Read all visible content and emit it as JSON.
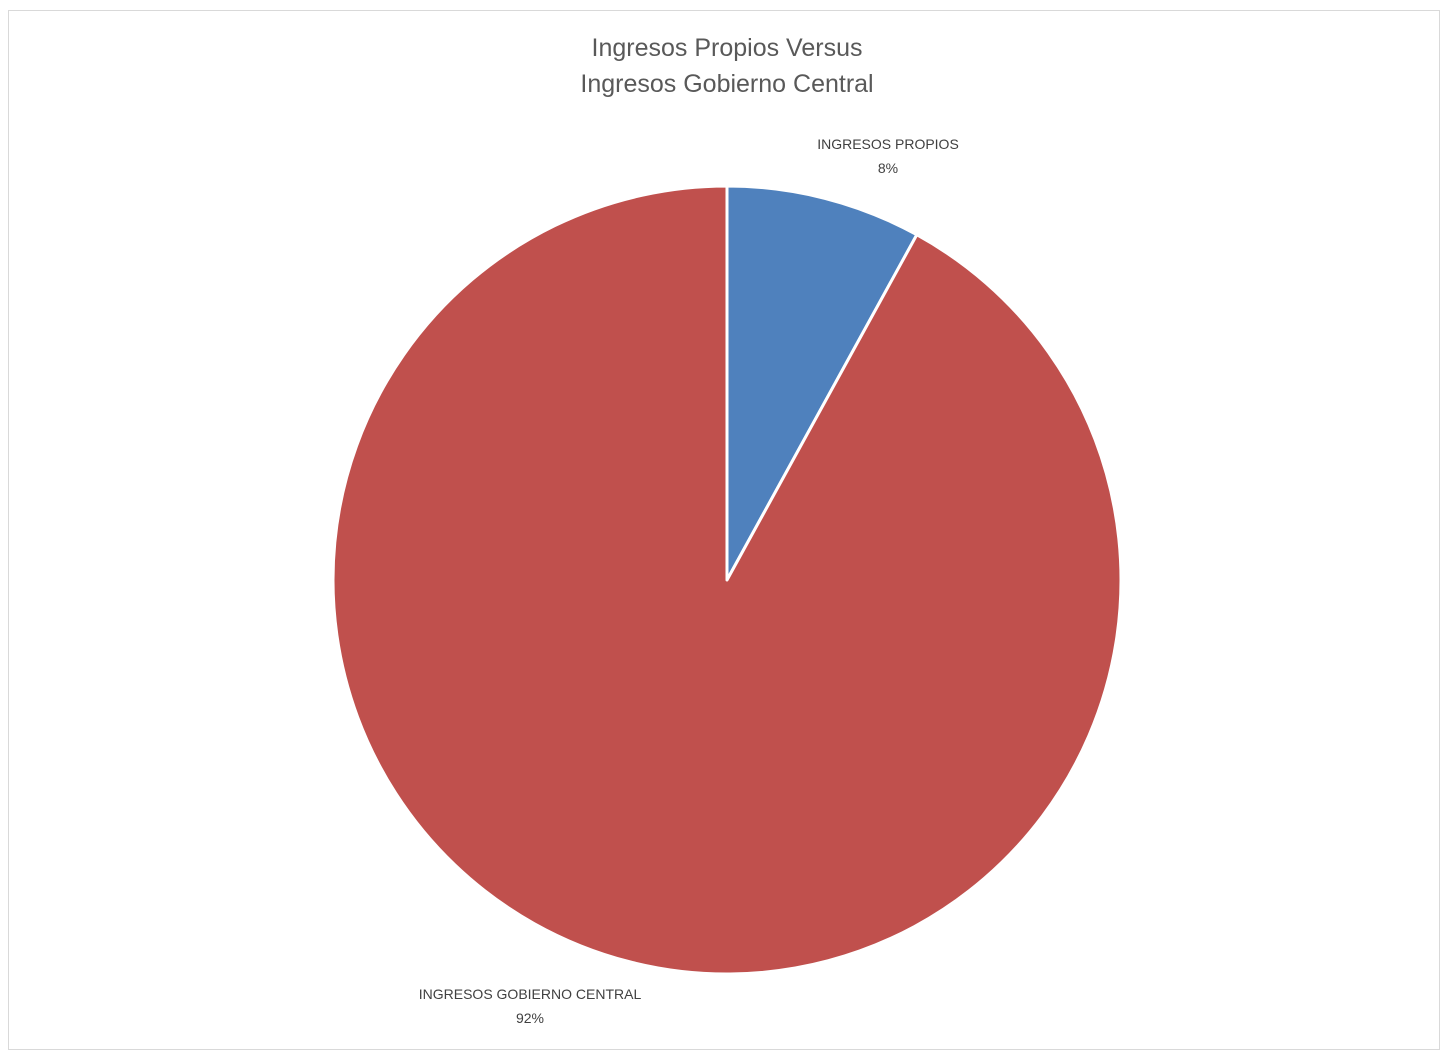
{
  "chart_data": {
    "type": "pie",
    "title": [
      "Ingresos Propios Versus",
      "Ingresos Gobierno Central"
    ],
    "start_angle_deg": 0,
    "direction": "clockwise",
    "slices": [
      {
        "label": "INGRESOS PROPIOS",
        "value": 8,
        "display": "8%",
        "color": "#4f81bd"
      },
      {
        "label": "INGRESOS GOBIERNO CENTRAL",
        "value": 92,
        "display": "92%",
        "color": "#c0504d"
      }
    ],
    "legend": "none"
  }
}
